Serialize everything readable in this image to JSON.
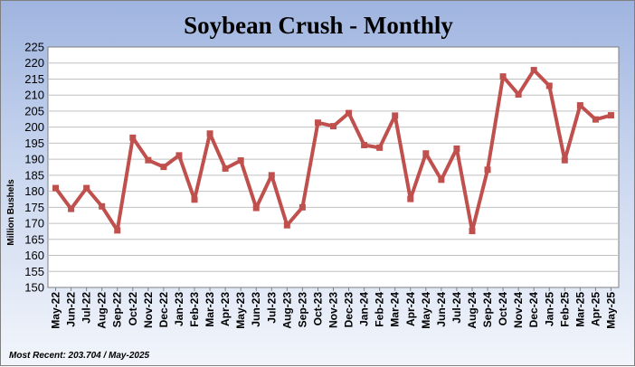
{
  "chart_data": {
    "type": "line",
    "title": "Soybean Crush - Monthly",
    "ylabel": "Million Bushels",
    "xlabel": "",
    "ylim": [
      150,
      225
    ],
    "ytick_step": 5,
    "grid": "horizontal",
    "legend": "none",
    "categories": [
      "May-22",
      "Jun-22",
      "Jul-22",
      "Aug-22",
      "Sep-22",
      "Oct-22",
      "Nov-22",
      "Dec-22",
      "Jan-23",
      "Feb-23",
      "Mar-23",
      "Apr-23",
      "May-23",
      "Jun-23",
      "Jul-23",
      "Aug-23",
      "Sep-23",
      "Oct-23",
      "Nov-23",
      "Dec-23",
      "Jan-24",
      "Feb-24",
      "Mar-24",
      "Apr-24",
      "May-24",
      "Jun-24",
      "Jul-24",
      "Aug-24",
      "Sep-24",
      "Oct-24",
      "Nov-24",
      "Dec-24",
      "Jan-25",
      "Feb-25",
      "Mar-25",
      "Apr-25",
      "May-25"
    ],
    "series": [
      {
        "values": [
          181,
          174.5,
          181,
          175.3,
          167.8,
          196.7,
          189.7,
          187.6,
          191.2,
          177.4,
          198,
          187.1,
          189.6,
          174.8,
          185,
          169.4,
          175,
          201.4,
          200.3,
          204.4,
          194.4,
          193.6,
          203.6,
          177.6,
          191.8,
          183.6,
          193.3,
          167.6,
          186.7,
          215.8,
          210.2,
          217.8,
          212.9,
          189.7,
          206.8,
          202.4,
          203.7
        ]
      }
    ],
    "footnote": "Most Recent: 203.704 / May-2025"
  },
  "colors": {
    "line": "#c0504d",
    "grid": "#c0c0c0",
    "plot_border": "#7f7f7f",
    "plot_bg": "#ffffff"
  }
}
